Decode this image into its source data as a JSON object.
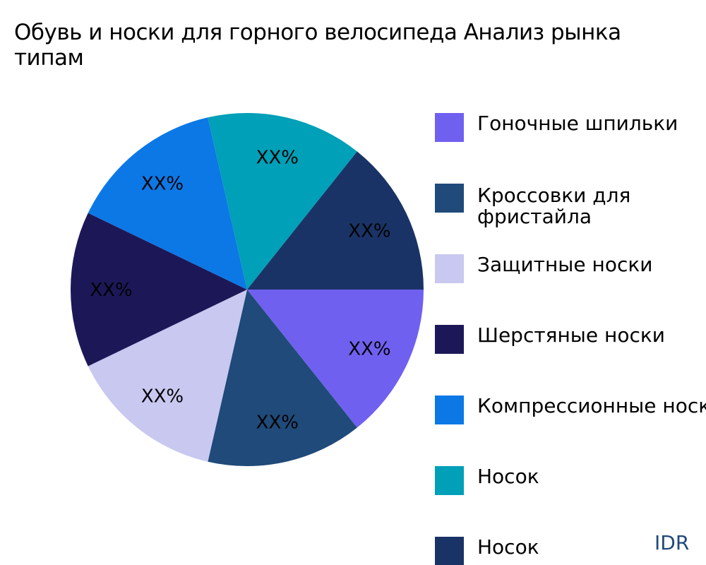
{
  "title_lines": [
    "Обувь и носки для горного велосипеда Анализ рынка",
    "типам"
  ],
  "watermark": "IDR",
  "chart_data": {
    "type": "pie",
    "title": "Обувь и носки для горного велосипеда Анализ рынка типам",
    "categories": [
      "Гоночные шпильки",
      "Кроссовки для фристайла",
      "Защитные носки",
      "Шерстяные носки",
      "Компрессионные носки",
      "Носок",
      "Носок"
    ],
    "values": [
      1,
      1,
      1,
      1,
      1,
      1,
      1
    ],
    "data_labels": [
      "XX%",
      "XX%",
      "XX%",
      "XX%",
      "XX%",
      "XX%",
      "XX%"
    ],
    "colors": [
      "#7060F0",
      "#1F4A7A",
      "#C8C8F0",
      "#1C1858",
      "#0C78E6",
      "#00A0B8",
      "#1A3366"
    ],
    "legend_position": "right",
    "start_angle": "3 o'clock, clockwise"
  }
}
